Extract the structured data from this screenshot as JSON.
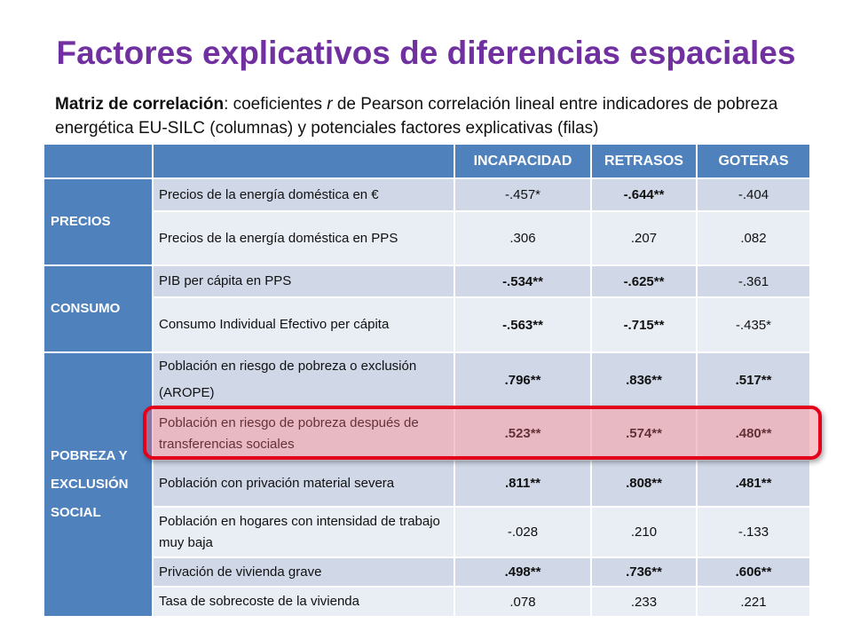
{
  "title": "Factores explicativos de diferencias espaciales",
  "subtitle": {
    "bold": "Matriz de correlación",
    "part1": ": coeficientes ",
    "italic": "r",
    "part2": " de Pearson correlación lineal entre indicadores de pobreza energética EU-SILC (columnas) y potenciales factores explicativas (filas)"
  },
  "columns": [
    "INCAPACIDAD",
    "RETRASOS",
    "GOTERAS"
  ],
  "groups": [
    {
      "label": "PRECIOS",
      "rows": [
        {
          "label": "Precios de la energía  doméstica en €",
          "values": [
            "-.457*",
            "-.644**",
            "-.404"
          ],
          "bold": [
            false,
            true,
            false
          ]
        },
        {
          "label": "Precios de la energía doméstica en PPS",
          "values": [
            ".306",
            ".207",
            ".082"
          ],
          "bold": [
            false,
            false,
            false
          ]
        }
      ]
    },
    {
      "label": "CONSUMO",
      "rows": [
        {
          "label": "PIB per cápita en PPS",
          "values": [
            "-.534**",
            "-.625**",
            "-.361"
          ],
          "bold": [
            true,
            true,
            false
          ]
        },
        {
          "label": "Consumo Individual Efectivo per cápita",
          "values": [
            "-.563**",
            "-.715**",
            "-.435*"
          ],
          "bold": [
            true,
            true,
            false
          ]
        }
      ]
    },
    {
      "label": "POBREZA Y EXCLUSIÓN SOCIAL",
      "rows": [
        {
          "label": "Población en riesgo de pobreza o exclusión (AROPE)",
          "values": [
            ".796**",
            ".836**",
            ".517**"
          ],
          "bold": [
            true,
            true,
            true
          ]
        },
        {
          "label": "Población en riesgo de pobreza después de transferencias  sociales",
          "values": [
            ".523**",
            ".574**",
            ".480**"
          ],
          "bold": [
            true,
            true,
            true
          ]
        },
        {
          "label": "Población con privación material severa",
          "values": [
            ".811**",
            ".808**",
            ".481**"
          ],
          "bold": [
            true,
            true,
            true
          ]
        },
        {
          "label": "Población en hogares con intensidad de trabajo muy baja",
          "values": [
            "-.028",
            ".210",
            "-.133"
          ],
          "bold": [
            false,
            false,
            false
          ]
        },
        {
          "label": "Privación de vivienda grave",
          "values": [
            ".498**",
            ".736**",
            ".606**"
          ],
          "bold": [
            true,
            true,
            true
          ]
        },
        {
          "label": "Tasa de sobrecoste de la vivienda",
          "values": [
            ".078",
            ".233",
            ".221"
          ],
          "bold": [
            false,
            false,
            false
          ]
        }
      ]
    }
  ],
  "colors": {
    "title": "#7030a0",
    "header": "#4f81bd",
    "row_dark": "#d0d8e8",
    "row_light": "#e9edf4",
    "highlight_border": "#e3001b"
  }
}
